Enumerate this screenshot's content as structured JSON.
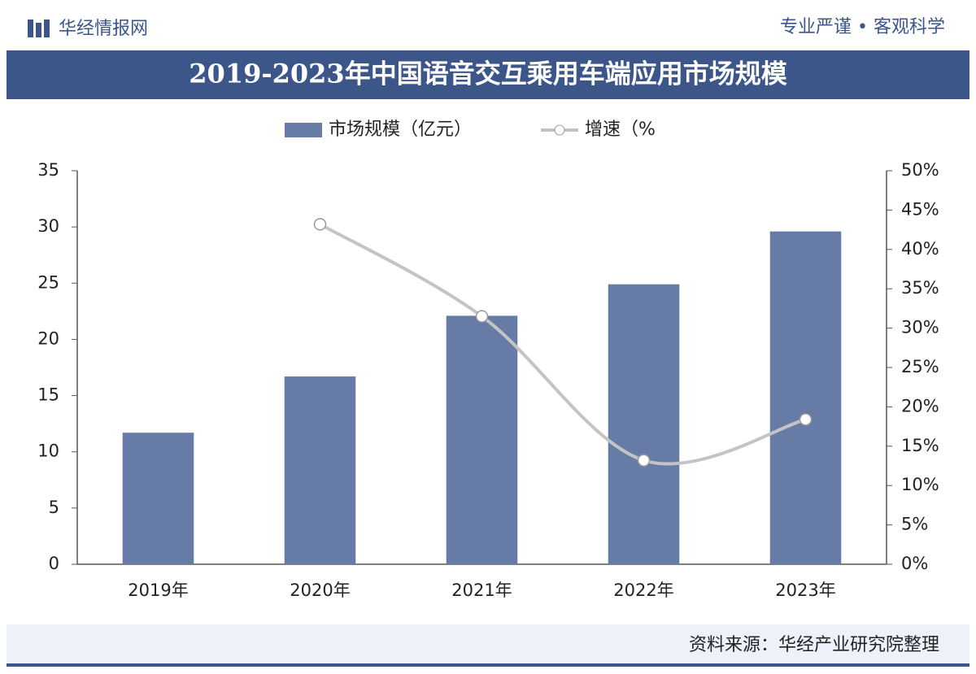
{
  "header": {
    "brand": "华经情报网",
    "slogan": "专业严谨 • 客观科学"
  },
  "chart_data": {
    "type": "bar",
    "title": "2019-2023年中国语音交互乘用车端应用市场规模",
    "categories": [
      "2019年",
      "2020年",
      "2021年",
      "2022年",
      "2023年"
    ],
    "series": [
      {
        "name": "市场规模（亿元）",
        "type": "bar",
        "color": "#667ca6",
        "values": [
          11.7,
          16.7,
          22.1,
          24.9,
          29.6
        ]
      },
      {
        "name": "增速（%",
        "type": "line",
        "color": "#c4c4c4",
        "axis": "y2",
        "values": [
          null,
          43.2,
          31.5,
          13.2,
          18.4
        ]
      }
    ],
    "ylim": [
      0,
      35
    ],
    "yticks": [
      0,
      5,
      10,
      15,
      20,
      25,
      30,
      35
    ],
    "y2lim": [
      0,
      50
    ],
    "y2ticks": [
      {
        "value": 0,
        "label": "0%"
      },
      {
        "value": 5,
        "label": "5%"
      },
      {
        "value": 10,
        "label": "10%"
      },
      {
        "value": 15,
        "label": "15%"
      },
      {
        "value": 20,
        "label": "20%"
      },
      {
        "value": 25,
        "label": "25%"
      },
      {
        "value": 30,
        "label": "30%"
      },
      {
        "value": 35,
        "label": "35%"
      },
      {
        "value": 40,
        "label": "40%"
      },
      {
        "value": 45,
        "label": "45%"
      },
      {
        "value": 50,
        "label": "50%"
      }
    ],
    "grid": false,
    "legend": "top"
  },
  "footer": {
    "source": "资料来源：华经产业研究院整理"
  }
}
